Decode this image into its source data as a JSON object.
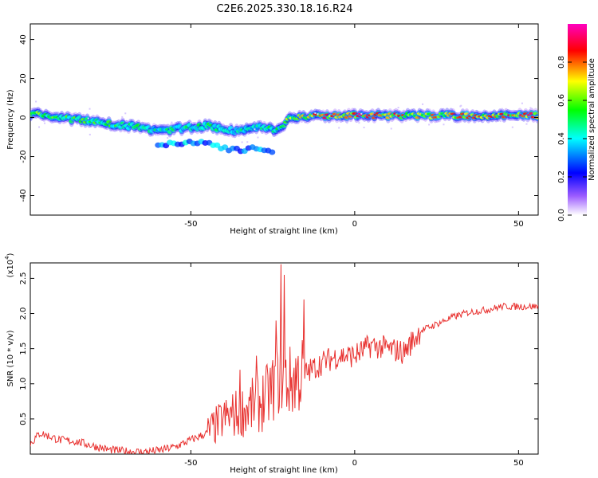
{
  "chart_data": [
    {
      "type": "heatmap",
      "title": "C2E6.2025.330.18.16.R24",
      "xlabel": "Height of straight line (km)",
      "ylabel": "Frequency (Hz)",
      "xlim": [
        -99,
        56
      ],
      "ylim": [
        -50,
        48
      ],
      "xticks": [
        -50,
        0,
        50
      ],
      "yticks": [
        40,
        20,
        0,
        -20,
        -40
      ],
      "colorbar": {
        "label": "Normalized spectral amplitude",
        "range": [
          0,
          1
        ],
        "ticks": [
          "0.0",
          "0.2",
          "0.4",
          "0.6",
          "0.8"
        ],
        "colors": [
          "#ffffff",
          "#9c5cff",
          "#0000ff",
          "#00ffff",
          "#00ff00",
          "#ffff00",
          "#ff0000",
          "#ff00c0"
        ]
      },
      "ridge": {
        "x": [
          -98,
          -90,
          -80,
          -70,
          -60,
          -50,
          -45,
          -40,
          -35,
          -30,
          -25,
          -22,
          -20,
          -10,
          0,
          10,
          20,
          30,
          40,
          56
        ],
        "frequency_hz": [
          2,
          0,
          -2,
          -4,
          -7,
          -5,
          -4,
          -6,
          -7,
          -5,
          -6,
          -6,
          0,
          1,
          1,
          1,
          1,
          1,
          1,
          1
        ],
        "amplitude": [
          0.6,
          0.55,
          0.55,
          0.5,
          0.45,
          0.5,
          0.5,
          0.45,
          0.45,
          0.45,
          0.5,
          0.5,
          0.6,
          0.8,
          0.85,
          0.85,
          0.7,
          0.75,
          0.8,
          0.85
        ]
      }
    },
    {
      "type": "line",
      "xlabel": "Height of straight line (km)",
      "ylabel": "SNR (10 * v/v)",
      "y_multiplier": "(x10^4)",
      "y_multiplier_base": "(x10",
      "y_multiplier_exp": "4",
      "xlim": [
        -99,
        56
      ],
      "ylim": [
        0,
        2.72
      ],
      "xticks": [
        -50,
        0,
        50
      ],
      "yticks": [
        0.5,
        1.0,
        1.5,
        2.0,
        2.5
      ],
      "yticklabels": [
        "0.5",
        "1.0",
        "1.5",
        "2.0",
        "2.5"
      ],
      "color": "#e8312f",
      "series": [
        {
          "name": "SNR",
          "x": [
            -99,
            -96,
            -93,
            -90,
            -85,
            -80,
            -75,
            -70,
            -65,
            -60,
            -55,
            -50,
            -45,
            -40,
            -35,
            -30,
            -27,
            -24,
            -22,
            -20,
            -18,
            -15,
            -10,
            -5,
            0,
            5,
            10,
            15,
            20,
            25,
            30,
            35,
            40,
            45,
            50,
            56
          ],
          "y": [
            0.15,
            0.3,
            0.25,
            0.2,
            0.18,
            0.12,
            0.06,
            0.04,
            0.03,
            0.05,
            0.1,
            0.2,
            0.3,
            0.5,
            0.6,
            0.7,
            0.8,
            1.0,
            1.1,
            1.0,
            1.1,
            1.15,
            1.3,
            1.4,
            1.4,
            1.55,
            1.5,
            1.45,
            1.75,
            1.85,
            1.95,
            2.02,
            2.05,
            2.1,
            2.1,
            2.1
          ]
        }
      ],
      "peaks": [
        {
          "x": -22.5,
          "y": 2.7
        },
        {
          "x": -15.5,
          "y": 2.2
        },
        {
          "x": -21.5,
          "y": 2.55
        },
        {
          "x": -24,
          "y": 1.9
        },
        {
          "x": -30,
          "y": 1.4
        },
        {
          "x": -35,
          "y": 1.2
        }
      ]
    }
  ]
}
